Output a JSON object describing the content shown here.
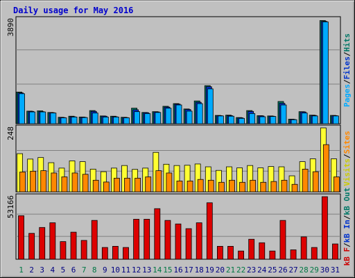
{
  "chart_data": {
    "type": "bar",
    "title": "Daily usage for May 2016",
    "days": [
      "1",
      "2",
      "3",
      "4",
      "5",
      "6",
      "7",
      "8",
      "9",
      "10",
      "11",
      "12",
      "13",
      "14",
      "15",
      "16",
      "17",
      "18",
      "19",
      "20",
      "21",
      "22",
      "23",
      "24",
      "25",
      "26",
      "27",
      "28",
      "29",
      "30",
      "31"
    ],
    "weekend_days": [
      1,
      7,
      8,
      14,
      15,
      21,
      22,
      28,
      29
    ],
    "panels": [
      {
        "name": "pages-files-hits",
        "max_label": "3890",
        "ymax": 3890,
        "legend": [
          {
            "text": "Pages",
            "color": "#00aaff"
          },
          {
            "text": "/",
            "color": "#000000"
          },
          {
            "text": "Files",
            "color": "#0033cc"
          },
          {
            "text": "/",
            "color": "#000000"
          },
          {
            "text": "Hits",
            "color": "#007766"
          }
        ],
        "series": [
          {
            "name": "Hits",
            "color": "#007766",
            "values": [
              1180,
              470,
              480,
              420,
              240,
              280,
              250,
              490,
              290,
              280,
              240,
              580,
              420,
              450,
              650,
              750,
              550,
              850,
              1420,
              310,
              320,
              230,
              490,
              300,
              290,
              830,
              170,
              450,
              320,
              3850,
              310
            ]
          },
          {
            "name": "Files",
            "color": "#0033cc",
            "values": [
              1150,
              460,
              450,
              410,
              230,
              260,
              240,
              460,
              280,
              260,
              230,
              520,
              410,
              440,
              620,
              730,
              530,
              800,
              1380,
              300,
              300,
              220,
              460,
              290,
              280,
              760,
              160,
              440,
              310,
              3820,
              300
            ]
          },
          {
            "name": "Pages",
            "color": "#00aaff",
            "values": [
              1120,
              440,
              440,
              400,
              220,
              250,
              230,
              400,
              250,
              250,
              220,
              450,
              380,
              420,
              580,
              700,
              470,
              750,
              1300,
              290,
              280,
              200,
              380,
              260,
              270,
              700,
              150,
              400,
              290,
              3800,
              290
            ]
          }
        ]
      },
      {
        "name": "visits-sites",
        "max_label": "248",
        "ymax": 248,
        "legend": [
          {
            "text": "Visits",
            "color": "#cccc00"
          },
          {
            "text": "/",
            "color": "#000000"
          },
          {
            "text": "Sites",
            "color": "#ff8800"
          }
        ],
        "series": [
          {
            "name": "Visits",
            "color": "#ffff33",
            "values": [
              148,
              127,
              133,
              113,
              92,
              120,
              117,
              88,
              78,
              92,
              102,
              87,
              92,
              153,
              107,
              102,
              103,
              108,
              97,
              83,
              97,
              93,
              102,
              93,
              98,
              97,
              62,
              117,
              128,
              248,
              128
            ]
          },
          {
            "name": "Sites",
            "color": "#ff8800",
            "values": [
              77,
              80,
              82,
              73,
              58,
              73,
              68,
              45,
              38,
              53,
              53,
              53,
              58,
              82,
              73,
              42,
              42,
              48,
              45,
              37,
              45,
              37,
              45,
              37,
              40,
              45,
              29,
              88,
              78,
              183,
              58
            ]
          }
        ]
      },
      {
        "name": "kbf-kbin-kbout",
        "max_label": "53166",
        "ymax": 53166,
        "legend": [
          {
            "text": "kB F",
            "color": "#cc0000"
          },
          {
            "text": "/",
            "color": "#000000"
          },
          {
            "text": "kB In",
            "color": "#0033cc"
          },
          {
            "text": "/",
            "color": "#000000"
          },
          {
            "text": "kB Out",
            "color": "#007766"
          }
        ],
        "series": [
          {
            "name": "kB F",
            "color": "#dd0000",
            "values": [
              37000,
              22000,
              27000,
              31000,
              15000,
              23000,
              16000,
              33000,
              10000,
              11000,
              10000,
              34000,
              34000,
              43000,
              33000,
              30000,
              26000,
              31000,
              48000,
              11000,
              11000,
              7000,
              17000,
              14000,
              7000,
              33000,
              8000,
              19000,
              10000,
              53166,
              13000
            ]
          }
        ]
      }
    ]
  }
}
